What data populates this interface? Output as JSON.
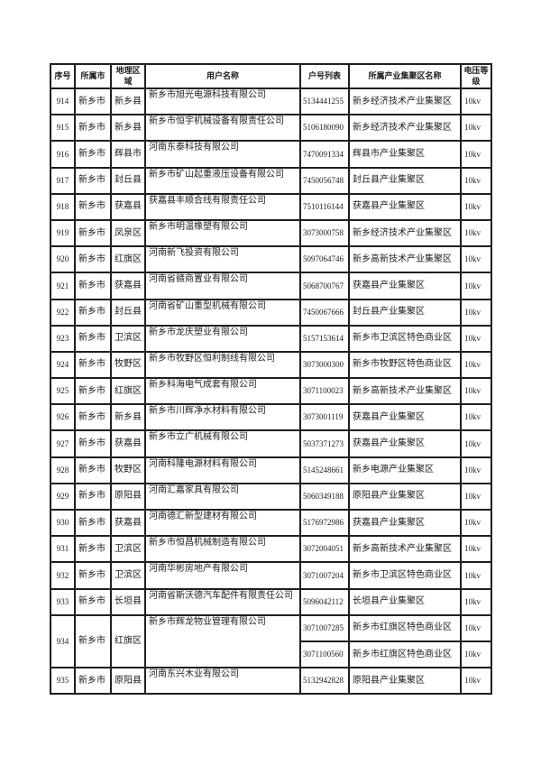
{
  "colors": {
    "background": "#ffffff",
    "border": "#1f1f1f",
    "text": "#1c1c1c"
  },
  "table": {
    "columns": [
      {
        "key": "serial",
        "label": "序号"
      },
      {
        "key": "city",
        "label": "所属市"
      },
      {
        "key": "region",
        "label": "地理区域"
      },
      {
        "key": "name",
        "label": "用户名称"
      },
      {
        "key": "account",
        "label": "户号列表"
      },
      {
        "key": "cluster",
        "label": "所属产业集聚区名称"
      },
      {
        "key": "voltage",
        "label": "电压等级"
      }
    ],
    "rows": [
      {
        "serial": "914",
        "city": "新乡市",
        "region": "新乡县",
        "name": "新乡市旭光电源科技有限公司",
        "entries": [
          {
            "account": "5134441255",
            "cluster": "新乡经济技术产业集聚区",
            "voltage": "10kv"
          }
        ]
      },
      {
        "serial": "915",
        "city": "新乡市",
        "region": "新乡县",
        "name": "新乡市恒宇机械设备有限责任公司",
        "entries": [
          {
            "account": "5106180090",
            "cluster": "新乡经济技术产业集聚区",
            "voltage": "10kv"
          }
        ]
      },
      {
        "serial": "916",
        "city": "新乡市",
        "region": "辉县市",
        "name": "河南东泰科技有限公司",
        "entries": [
          {
            "account": "7470091334",
            "cluster": "辉县市产业集聚区",
            "voltage": "10kv"
          }
        ]
      },
      {
        "serial": "917",
        "city": "新乡市",
        "region": "封丘县",
        "name": "新乡市矿山起重液压设备有限公司",
        "entries": [
          {
            "account": "7450056748",
            "cluster": "封丘县产业集聚区",
            "voltage": "10kv"
          }
        ]
      },
      {
        "serial": "918",
        "city": "新乡市",
        "region": "获嘉县",
        "name": "获嘉县丰顺合线有限责任公司",
        "entries": [
          {
            "account": "7510116144",
            "cluster": "获嘉县产业集聚区",
            "voltage": "10kv"
          }
        ]
      },
      {
        "serial": "919",
        "city": "新乡市",
        "region": "凤泉区",
        "name": "新乡市明温橡塑有限公司",
        "entries": [
          {
            "account": "3073000758",
            "cluster": "新乡经济技术产业集聚区",
            "voltage": "10kv"
          }
        ]
      },
      {
        "serial": "920",
        "city": "新乡市",
        "region": "红旗区",
        "name": "河南新飞投资有限公司",
        "entries": [
          {
            "account": "5097064746",
            "cluster": "新乡高新技术产业集聚区",
            "voltage": "10kv"
          }
        ]
      },
      {
        "serial": "921",
        "city": "新乡市",
        "region": "获嘉县",
        "name": "河南省赣商置业有限公司",
        "entries": [
          {
            "account": "5068700767",
            "cluster": "获嘉县产业集聚区",
            "voltage": "10kv"
          }
        ]
      },
      {
        "serial": "922",
        "city": "新乡市",
        "region": "封丘县",
        "name": "河南省矿山重型机械有限公司",
        "entries": [
          {
            "account": "7450067666",
            "cluster": "封丘县产业集聚区",
            "voltage": "10kv"
          }
        ]
      },
      {
        "serial": "923",
        "city": "新乡市",
        "region": "卫滨区",
        "name": "新乡市龙庆塑业有限公司",
        "entries": [
          {
            "account": "5157153614",
            "cluster": "新乡市卫滨区特色商业区",
            "voltage": "10kv"
          }
        ]
      },
      {
        "serial": "924",
        "city": "新乡市",
        "region": "牧野区",
        "name": "新乡市牧野区恒利制线有限公司",
        "entries": [
          {
            "account": "3073000300",
            "cluster": "新乡市牧野区特色商业区",
            "voltage": "10kv"
          }
        ]
      },
      {
        "serial": "925",
        "city": "新乡市",
        "region": "红旗区",
        "name": "新乡科海电气成套有限公司",
        "entries": [
          {
            "account": "3071100023",
            "cluster": "新乡高新技术产业集聚区",
            "voltage": "10kv"
          }
        ]
      },
      {
        "serial": "926",
        "city": "新乡市",
        "region": "新乡县",
        "name": "新乡市川辉净水材料有限公司",
        "entries": [
          {
            "account": "3073001119",
            "cluster": "获嘉县产业集聚区",
            "voltage": "10kv"
          }
        ]
      },
      {
        "serial": "927",
        "city": "新乡市",
        "region": "获嘉县",
        "name": "新乡市立广机械有限公司",
        "entries": [
          {
            "account": "5037371273",
            "cluster": "获嘉县产业集聚区",
            "voltage": "10kv"
          }
        ]
      },
      {
        "serial": "928",
        "city": "新乡市",
        "region": "牧野区",
        "name": "河南科隆电源材料有限公司",
        "entries": [
          {
            "account": "5145248661",
            "cluster": "新乡电源产业集聚区",
            "voltage": "10kv"
          }
        ]
      },
      {
        "serial": "929",
        "city": "新乡市",
        "region": "原阳县",
        "name": "河南汇嘉家具有限公司",
        "entries": [
          {
            "account": "5060349188",
            "cluster": "原阳县产业集聚区",
            "voltage": "10kv"
          }
        ]
      },
      {
        "serial": "930",
        "city": "新乡市",
        "region": "获嘉县",
        "name": "河南德汇新型建材有限公司",
        "entries": [
          {
            "account": "5176972986",
            "cluster": "获嘉县产业集聚区",
            "voltage": "10kv"
          }
        ]
      },
      {
        "serial": "931",
        "city": "新乡市",
        "region": "卫滨区",
        "name": "新乡市恒昌机械制造有限公司",
        "entries": [
          {
            "account": "3072004051",
            "cluster": "新乡高新技术产业集聚区",
            "voltage": "10kv"
          }
        ]
      },
      {
        "serial": "932",
        "city": "新乡市",
        "region": "卫滨区",
        "name": "河南华彬房地产有限公司",
        "entries": [
          {
            "account": "3071007204",
            "cluster": "新乡市卫滨区特色商业区",
            "voltage": "10kv"
          }
        ]
      },
      {
        "serial": "933",
        "city": "新乡市",
        "region": "长垣县",
        "name": "河南省斯沃德汽车配件有限责任公司",
        "entries": [
          {
            "account": "5096042112",
            "cluster": "长垣县产业集聚区",
            "voltage": "10kv"
          }
        ]
      },
      {
        "serial": "934",
        "city": "新乡市",
        "region": "红旗区",
        "name": "新乡市辉龙物业管理有限公司",
        "entries": [
          {
            "account": "3071007285",
            "cluster": "新乡市红旗区特色商业区",
            "voltage": "10kv"
          },
          {
            "account": "3071100560",
            "cluster": "新乡市红旗区特色商业区",
            "voltage": "10kv"
          }
        ]
      },
      {
        "serial": "935",
        "city": "新乡市",
        "region": "原阳县",
        "name": "河南东兴木业有限公司",
        "entries": [
          {
            "account": "5132942828",
            "cluster": "原阳县产业集聚区",
            "voltage": "10kv"
          }
        ]
      }
    ]
  }
}
